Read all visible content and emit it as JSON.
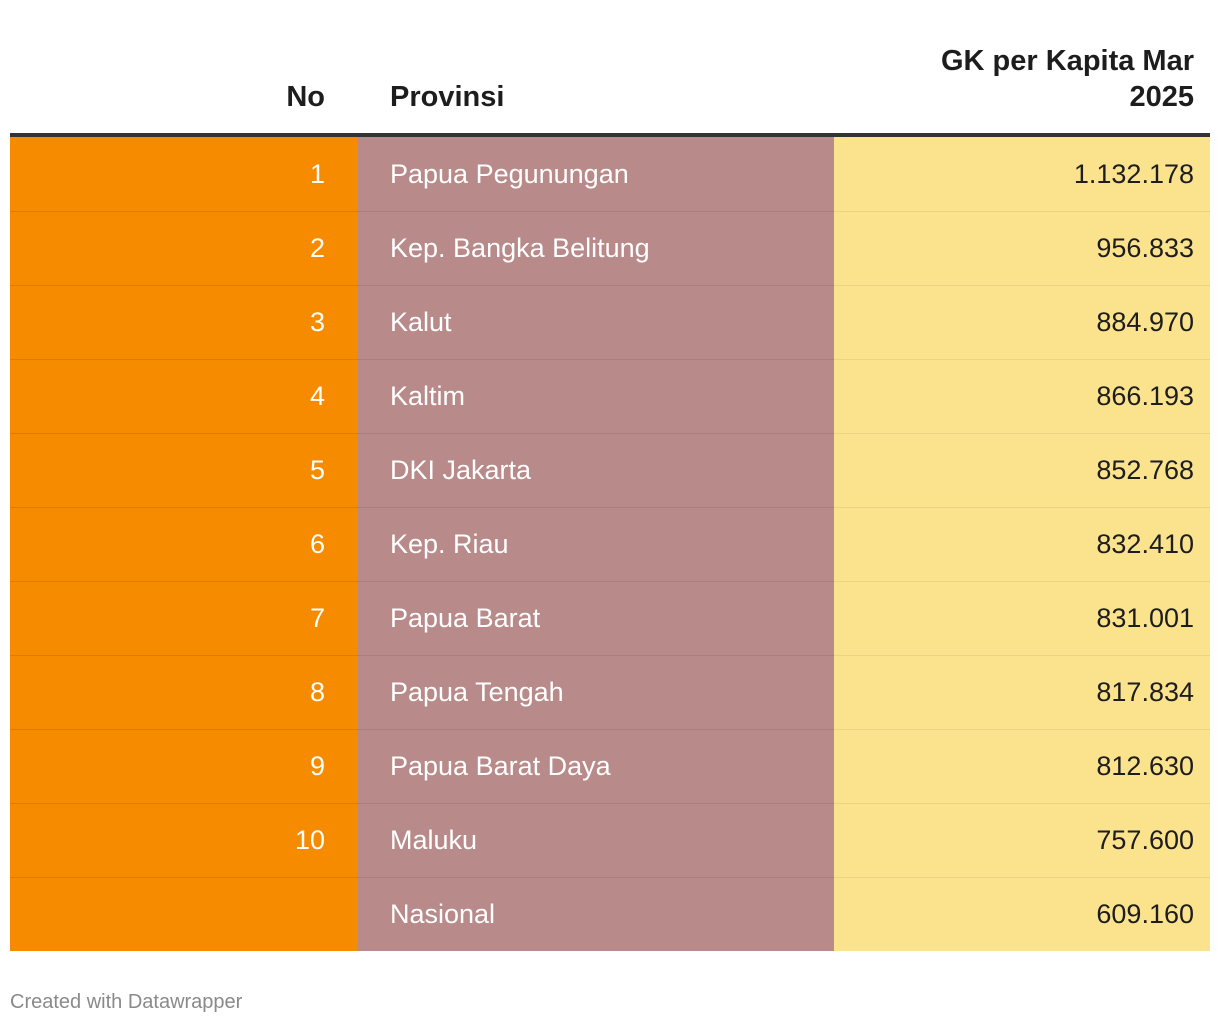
{
  "chart_data": {
    "type": "table",
    "columns": [
      "No",
      "Provinsi",
      "GK per Kapita Mar 2025"
    ],
    "header_lines": {
      "value_line1": "GK per Kapita Mar",
      "value_line2": "2025"
    },
    "rows": [
      {
        "no": "1",
        "provinsi": "Papua Pegunungan",
        "value": "1.132.178"
      },
      {
        "no": "2",
        "provinsi": "Kep. Bangka Belitung",
        "value": "956.833"
      },
      {
        "no": "3",
        "provinsi": "Kalut",
        "value": "884.970"
      },
      {
        "no": "4",
        "provinsi": "Kaltim",
        "value": "866.193"
      },
      {
        "no": "5",
        "provinsi": "DKI Jakarta",
        "value": "852.768"
      },
      {
        "no": "6",
        "provinsi": "Kep. Riau",
        "value": "832.410"
      },
      {
        "no": "7",
        "provinsi": "Papua Barat",
        "value": "831.001"
      },
      {
        "no": "8",
        "provinsi": "Papua Tengah",
        "value": "817.834"
      },
      {
        "no": "9",
        "provinsi": "Papua Barat Daya",
        "value": "812.630"
      },
      {
        "no": "10",
        "provinsi": "Maluku",
        "value": "757.600"
      },
      {
        "no": "",
        "provinsi": "Nasional",
        "value": "609.160"
      }
    ],
    "colors": {
      "no_column": "#f78b00",
      "provinsi_column": "#b88a8a",
      "value_column": "#fbe38e",
      "header_rule": "#333333"
    }
  },
  "footer": {
    "credit": "Created with Datawrapper"
  }
}
